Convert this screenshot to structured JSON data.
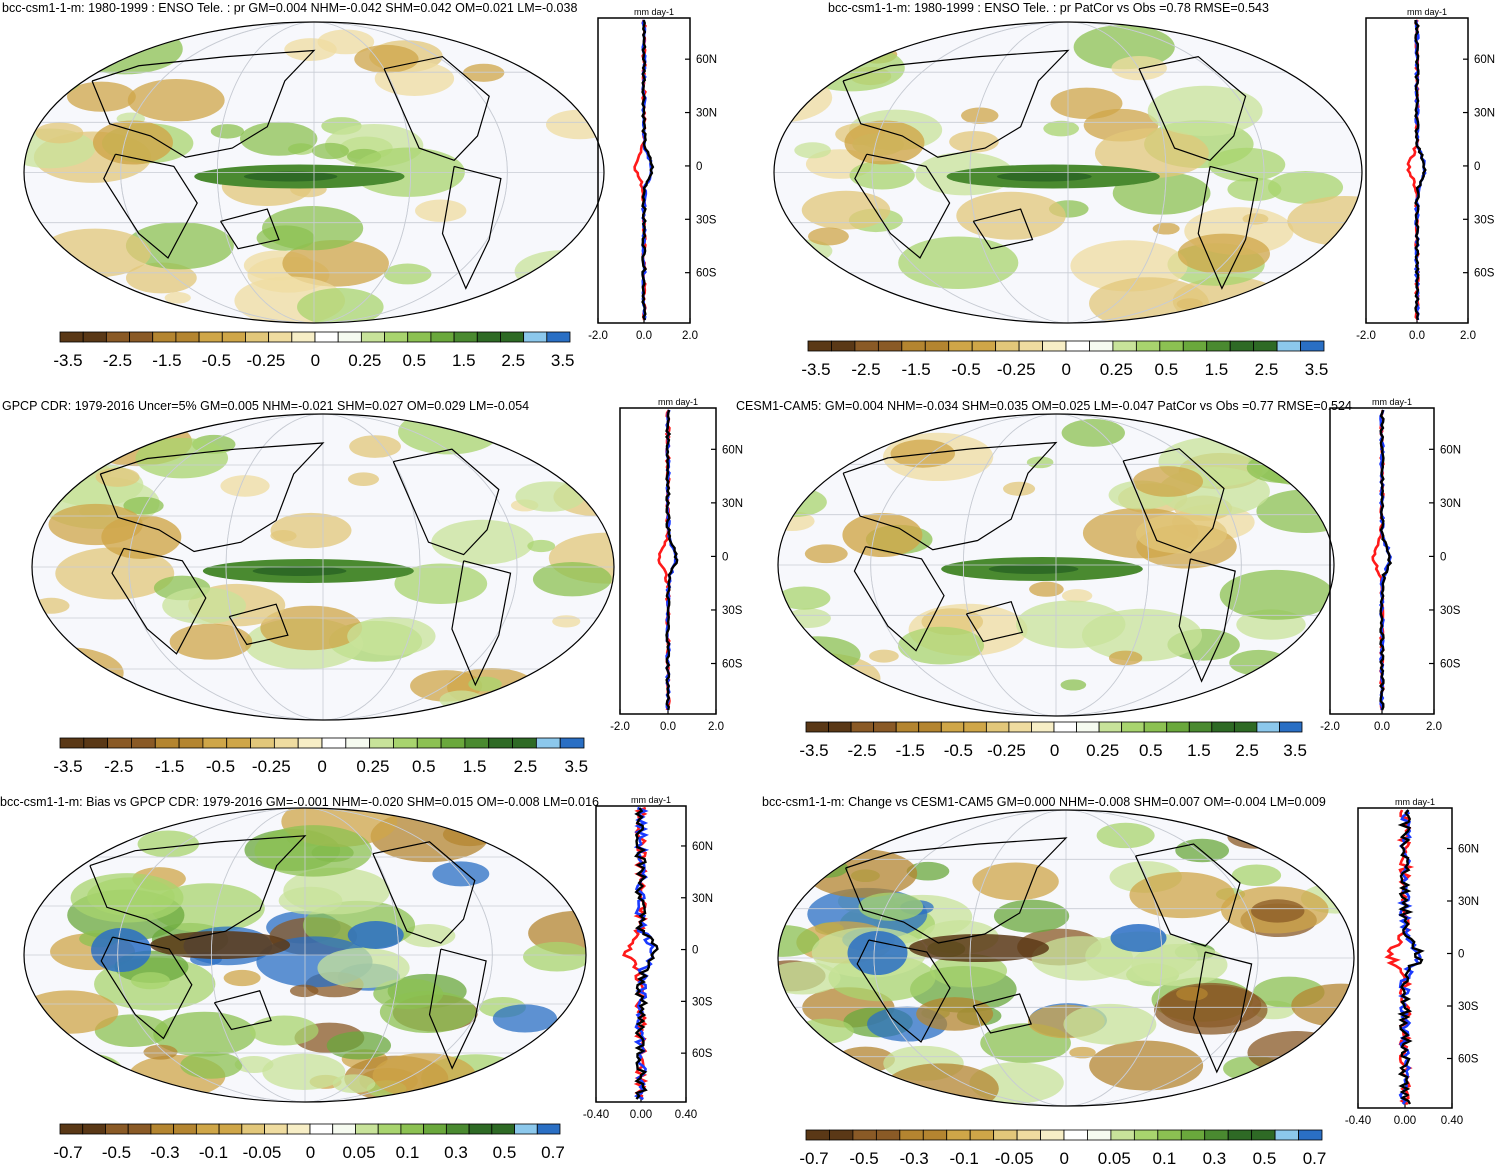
{
  "panels": [
    {
      "title": "bcc-csm1-1-m: 1980-1999 : ENSO Tele. : pr GM=0.004 NHM=-0.042 SHM=0.042 OM=0.021 LM=-0.038",
      "unit": "mm day-1",
      "colorbar": [
        "-3.5",
        "-2.5",
        "-1.5",
        "-0.5",
        "-0.25",
        "0",
        "0.25",
        "0.5",
        "1.5",
        "2.5",
        "3.5"
      ],
      "zonal_xticks": [
        "-2.0",
        "0.0",
        "2.0"
      ],
      "lat_ticks": [
        "60N",
        "30N",
        "0",
        "30S",
        "60S"
      ]
    },
    {
      "title": "bcc-csm1-1-m: 1980-1999 : ENSO Tele. : pr PatCor vs Obs =0.78 RMSE=0.543",
      "unit": "mm day-1",
      "colorbar": [
        "-3.5",
        "-2.5",
        "-1.5",
        "-0.5",
        "-0.25",
        "0",
        "0.25",
        "0.5",
        "1.5",
        "2.5",
        "3.5"
      ],
      "zonal_xticks": [
        "-2.0",
        "0.0",
        "2.0"
      ],
      "lat_ticks": [
        "60N",
        "30N",
        "0",
        "30S",
        "60S"
      ]
    },
    {
      "title": "GPCP CDR: 1979-2016 Uncer=5% GM=0.005 NHM=-0.021 SHM=0.027 OM=0.029 LM=-0.054",
      "unit": "mm day-1",
      "colorbar": [
        "-3.5",
        "-2.5",
        "-1.5",
        "-0.5",
        "-0.25",
        "0",
        "0.25",
        "0.5",
        "1.5",
        "2.5",
        "3.5"
      ],
      "zonal_xticks": [
        "-2.0",
        "0.0",
        "2.0"
      ],
      "lat_ticks": [
        "60N",
        "30N",
        "0",
        "30S",
        "60S"
      ]
    },
    {
      "title": "CESM1-CAM5: GM=0.004 NHM=-0.034 SHM=0.035 OM=0.025 LM=-0.047 PatCor vs Obs =0.77 RMSE=0.524",
      "unit": "mm day-1",
      "colorbar": [
        "-3.5",
        "-2.5",
        "-1.5",
        "-0.5",
        "-0.25",
        "0",
        "0.25",
        "0.5",
        "1.5",
        "2.5",
        "3.5"
      ],
      "zonal_xticks": [
        "-2.0",
        "0.0",
        "2.0"
      ],
      "lat_ticks": [
        "60N",
        "30N",
        "0",
        "30S",
        "60S"
      ]
    },
    {
      "title": "bcc-csm1-1-m: Bias vs GPCP CDR: 1979-2016 GM=-0.001 NHM=-0.020 SHM=0.015 OM=-0.008 LM=0.016",
      "unit": "mm day-1",
      "colorbar": [
        "-0.7",
        "-0.5",
        "-0.3",
        "-0.1",
        "-0.05",
        "0",
        "0.05",
        "0.1",
        "0.3",
        "0.5",
        "0.7"
      ],
      "zonal_xticks": [
        "-0.40",
        "0.00",
        "0.40"
      ],
      "lat_ticks": [
        "60N",
        "30N",
        "0",
        "30S",
        "60S"
      ]
    },
    {
      "title": "bcc-csm1-1-m: Change vs CESM1-CAM5 GM=0.000 NHM=-0.008 SHM=0.007 OM=-0.004 LM=0.009",
      "unit": "mm day-1",
      "colorbar": [
        "-0.7",
        "-0.5",
        "-0.3",
        "-0.1",
        "-0.05",
        "0",
        "0.05",
        "0.1",
        "0.3",
        "0.5",
        "0.7"
      ],
      "zonal_xticks": [
        "-0.40",
        "0.00",
        "0.40"
      ],
      "lat_ticks": [
        "60N",
        "30N",
        "0",
        "30S",
        "60S"
      ]
    }
  ],
  "colors": {
    "palette": [
      "#5a3816",
      "#8a5a26",
      "#b48530",
      "#cfa648",
      "#e2c77a",
      "#efdca0",
      "#f7eec6",
      "#ffffff",
      "#f6fbf0",
      "#c8e39a",
      "#a8d46e",
      "#8cc152",
      "#6aa83c",
      "#4a8a30",
      "#2e6a25",
      "#8cc8ec",
      "#2a6fc4"
    ],
    "zonal_series": [
      "#ff1a1a",
      "#1a3aff",
      "#000000"
    ]
  },
  "chart_data": [
    {
      "type": "heatmap",
      "title": "bcc-csm1-1-m: 1980-1999 : ENSO Tele. : pr GM=0.004 NHM=-0.042 SHM=0.042 OM=0.021 LM=-0.038",
      "colorbar_levels": [
        -3.5,
        -2.5,
        -1.5,
        -0.5,
        -0.25,
        0,
        0.25,
        0.5,
        1.5,
        2.5,
        3.5
      ],
      "zonal_xlim": [
        -2.0,
        2.0
      ],
      "zonal_ylim": [
        "80S",
        "80N"
      ],
      "zonal_lines": 3
    },
    {
      "type": "heatmap",
      "title": "bcc-csm1-1-m: 1980-1999 : ENSO Tele. : pr PatCor vs Obs =0.78 RMSE=0.543",
      "colorbar_levels": [
        -3.5,
        -2.5,
        -1.5,
        -0.5,
        -0.25,
        0,
        0.25,
        0.5,
        1.5,
        2.5,
        3.5
      ],
      "zonal_xlim": [
        -2.0,
        2.0
      ],
      "zonal_lines": 3
    },
    {
      "type": "heatmap",
      "title": "GPCP CDR: 1979-2016 Uncer=5% GM=0.005 NHM=-0.021 SHM=0.027 OM=0.029 LM=-0.054",
      "colorbar_levels": [
        -3.5,
        -2.5,
        -1.5,
        -0.5,
        -0.25,
        0,
        0.25,
        0.5,
        1.5,
        2.5,
        3.5
      ],
      "zonal_xlim": [
        -2.0,
        2.0
      ],
      "zonal_lines": 3
    },
    {
      "type": "heatmap",
      "title": "CESM1-CAM5: GM=0.004 NHM=-0.034 SHM=0.035 OM=0.025 LM=-0.047 PatCor vs Obs =0.77 RMSE=0.524",
      "colorbar_levels": [
        -3.5,
        -2.5,
        -1.5,
        -0.5,
        -0.25,
        0,
        0.25,
        0.5,
        1.5,
        2.5,
        3.5
      ],
      "zonal_xlim": [
        -2.0,
        2.0
      ],
      "zonal_lines": 3
    },
    {
      "type": "heatmap",
      "title": "bcc-csm1-1-m: Bias vs GPCP CDR: 1979-2016 GM=-0.001 NHM=-0.020 SHM=0.015 OM=-0.008 LM=0.016",
      "colorbar_levels": [
        -0.7,
        -0.5,
        -0.3,
        -0.1,
        -0.05,
        0,
        0.05,
        0.1,
        0.3,
        0.5,
        0.7
      ],
      "zonal_xlim": [
        -0.4,
        0.4
      ],
      "zonal_lines": 3
    },
    {
      "type": "heatmap",
      "title": "bcc-csm1-1-m: Change vs CESM1-CAM5 GM=0.000 NHM=-0.008 SHM=0.007 OM=-0.004 LM=0.009",
      "colorbar_levels": [
        -0.7,
        -0.5,
        -0.3,
        -0.1,
        -0.05,
        0,
        0.05,
        0.1,
        0.3,
        0.5,
        0.7
      ],
      "zonal_xlim": [
        -0.4,
        0.4
      ],
      "zonal_lines": 3
    }
  ]
}
